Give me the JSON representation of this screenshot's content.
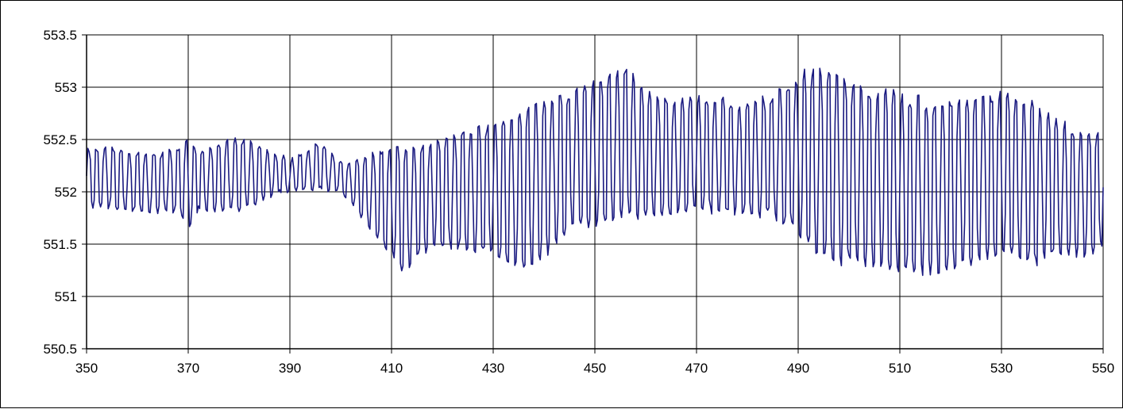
{
  "chart_data": {
    "type": "line",
    "title": "",
    "xlabel": "",
    "ylabel": "",
    "xlim": [
      350,
      550
    ],
    "ylim": [
      550.5,
      553.5
    ],
    "x_ticks": [
      350,
      370,
      390,
      410,
      430,
      450,
      470,
      490,
      510,
      530,
      550
    ],
    "y_ticks": [
      550.5,
      551,
      551.5,
      552,
      552.5,
      553,
      553.5
    ],
    "x_tick_labels": [
      "350",
      "370",
      "390",
      "410",
      "430",
      "450",
      "470",
      "490",
      "510",
      "530",
      "550"
    ],
    "y_tick_labels": [
      "550.5",
      "551",
      "551.5",
      "552",
      "552.5",
      "553",
      "553.5"
    ],
    "grid": true,
    "legend": "none",
    "series": [
      {
        "color": "#1a1a80",
        "sample_step": 0.25,
        "envelope": {
          "x": [
            350,
            356,
            360,
            368,
            370,
            372,
            380,
            386,
            390,
            396,
            400,
            404,
            408,
            412,
            418,
            424,
            430,
            436,
            440,
            446,
            450,
            456,
            460,
            466,
            470,
            476,
            480,
            486,
            490,
            494,
            500,
            506,
            510,
            516,
            520,
            526,
            530,
            536,
            540,
            546,
            550
          ],
          "upper": [
            552.45,
            552.45,
            552.38,
            552.42,
            552.55,
            552.4,
            552.55,
            552.4,
            552.3,
            552.5,
            552.3,
            552.3,
            552.45,
            552.45,
            552.5,
            552.6,
            552.7,
            552.85,
            552.9,
            553.0,
            553.1,
            553.25,
            553.0,
            552.9,
            552.95,
            552.9,
            552.85,
            553.0,
            553.15,
            553.25,
            553.1,
            553.0,
            553.0,
            552.9,
            552.95,
            552.95,
            553.0,
            552.9,
            552.75,
            552.6,
            552.6
          ],
          "lower": [
            551.85,
            551.8,
            551.8,
            551.78,
            551.65,
            551.8,
            551.8,
            551.95,
            552.0,
            552.0,
            552.0,
            551.75,
            551.5,
            551.2,
            551.45,
            551.4,
            551.35,
            551.2,
            551.35,
            551.65,
            551.6,
            551.75,
            551.7,
            551.75,
            551.8,
            551.75,
            551.75,
            551.7,
            551.55,
            551.3,
            551.25,
            551.25,
            551.15,
            551.2,
            551.2,
            551.3,
            551.35,
            551.25,
            551.35,
            551.35,
            551.45
          ]
        }
      }
    ]
  }
}
